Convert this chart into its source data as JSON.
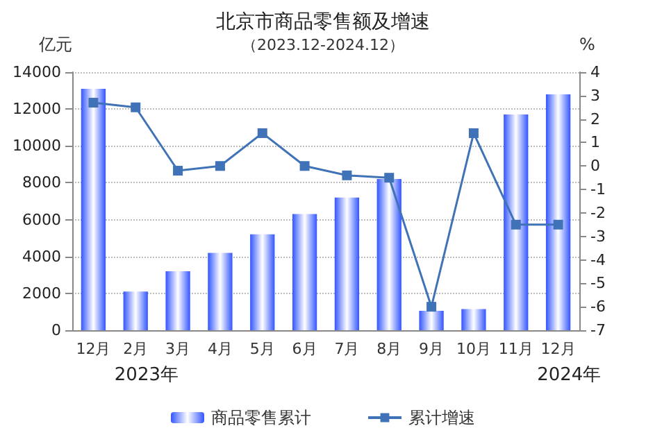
{
  "chart_data": {
    "type": "bar",
    "title": "北京市商品零售额及增速",
    "subtitle": "（2023.12-2024.12）",
    "ylabel": "亿元",
    "y2label": "%",
    "categories": [
      "12月",
      "2月",
      "3月",
      "4月",
      "5月",
      "6月",
      "7月",
      "8月",
      "9月",
      "10月",
      "11月",
      "12月"
    ],
    "series": [
      {
        "name": "商品零售累计",
        "color": "#3355ff",
        "values": [
          13100,
          2100,
          3200,
          4200,
          5200,
          6300,
          7200,
          8200,
          1050,
          1150,
          11700,
          12800
        ]
      },
      {
        "name": "累计增速",
        "type": "line",
        "axis": "y2",
        "color": "#3f72b6",
        "marker": "square",
        "values": [
          2.7,
          2.5,
          -0.2,
          0,
          1.4,
          0,
          -0.4,
          -0.5,
          -6,
          1.4,
          -2.5,
          -2.5
        ]
      }
    ],
    "ylim": [
      0,
      14000
    ],
    "yticks": [
      0,
      2000,
      4000,
      6000,
      8000,
      10000,
      12000,
      14000
    ],
    "y2lim": [
      -7,
      4
    ],
    "y2ticks": [
      -7,
      -6,
      -5,
      -4,
      -3,
      -2,
      -1,
      0,
      1,
      2,
      3,
      4
    ],
    "annotations": [
      "2023年",
      "2024年"
    ],
    "grid": "y",
    "legend": "bottom"
  }
}
